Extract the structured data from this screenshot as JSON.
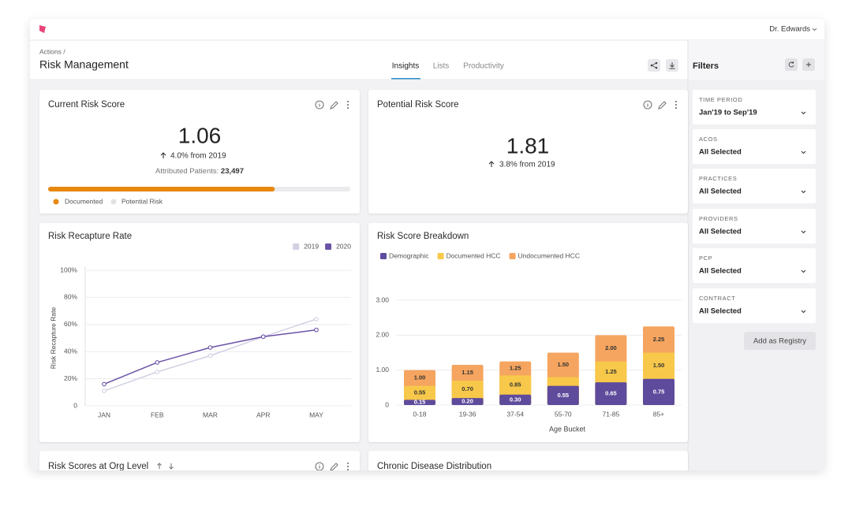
{
  "header": {
    "user": "Dr. Edwards",
    "breadcrumb": "Actions /",
    "title": "Risk Management",
    "tabs": [
      "Insights",
      "Lists",
      "Productivity"
    ]
  },
  "cards": {
    "current_risk_score": {
      "title": "Current Risk Score",
      "value": 1.06,
      "change": "4.0% from 2019",
      "patients_label": "Attributed Patients:",
      "patients": "23,497",
      "documented_share": 75,
      "legend": [
        "Documented",
        "Potential Risk"
      ]
    },
    "potential_risk_score": {
      "title": "Potential Risk Score",
      "value": 1.81,
      "change": "3.8% from 2019"
    },
    "org_level": {
      "title": "Risk Scores at Org Level"
    },
    "chronic": {
      "title": "Chronic Disease Distribution"
    }
  },
  "chart_data": [
    {
      "type": "line",
      "title": "Risk Recapture Rate",
      "y_label": "Risk Recapture Rate",
      "categories": [
        "JAN",
        "FEB",
        "MAR",
        "APR",
        "MAY"
      ],
      "series": [
        {
          "name": "2019",
          "color": "#d2d0e3",
          "values": [
            11,
            25,
            37,
            51,
            64
          ]
        },
        {
          "name": "2020",
          "color": "#6a52a6",
          "values": [
            16,
            32,
            43,
            51,
            56
          ]
        }
      ],
      "ylim": [
        0,
        100
      ],
      "yticks": [
        0,
        {
          "value": 20,
          "label": "20%"
        },
        {
          "value": 40,
          "label": "40%"
        },
        {
          "value": 60,
          "label": "60%"
        },
        {
          "value": 80,
          "label": "80%"
        },
        {
          "value": 100,
          "label": "100%"
        }
      ],
      "grid": true,
      "legend": "top-right"
    },
    {
      "type": "bar",
      "title": "Risk Score Breakdown",
      "x_label": "Age Bucket",
      "categories": [
        "0-18",
        "19-36",
        "37-54",
        "55-70",
        "71-85",
        "85+"
      ],
      "series": [
        {
          "name": "Demographic",
          "color": "#5e4b9c",
          "values": [
            0.15,
            0.2,
            0.3,
            0.55,
            0.65,
            0.75
          ],
          "value_labels": [
            "0.15",
            "0.20",
            "0.30",
            "0.55",
            "0.65",
            "0.75"
          ]
        },
        {
          "name": "Documented HCC",
          "color": "#f8c84a",
          "values": [
            0.55,
            0.7,
            0.85,
            0.8,
            1.25,
            1.5
          ],
          "value_labels": [
            "0.55",
            "0.70",
            "0.85",
            null,
            "1.25",
            "1.50"
          ]
        },
        {
          "name": "Undocumented HCC",
          "color": "#f5a560",
          "values": [
            1,
            1.15,
            1.25,
            1.5,
            2,
            2.25
          ],
          "value_labels": [
            "1.00",
            "1.15",
            "1.25",
            "1.50",
            "2.00",
            "2.25"
          ]
        }
      ],
      "ylim": [
        0,
        3
      ],
      "yticks": [
        0,
        {
          "value": 1,
          "label": "1.00"
        },
        {
          "value": 2,
          "label": "2.00"
        },
        {
          "value": 3,
          "label": "3.00"
        }
      ],
      "grid": true,
      "overlap": true,
      "legend": "top-left"
    }
  ],
  "filters": {
    "title": "Filters",
    "items": [
      {
        "label": "TIME PERIOD",
        "value": "Jan'19 to Sep'19"
      },
      {
        "label": "ACOS",
        "value": "All Selected"
      },
      {
        "label": "PRACTICES",
        "value": "All Selected"
      },
      {
        "label": "PROVIDERS",
        "value": "All Selected"
      },
      {
        "label": "PCP",
        "value": "All Selected"
      },
      {
        "label": "CONTRACT",
        "value": "All Selected"
      }
    ],
    "button": "Add as Registry"
  }
}
